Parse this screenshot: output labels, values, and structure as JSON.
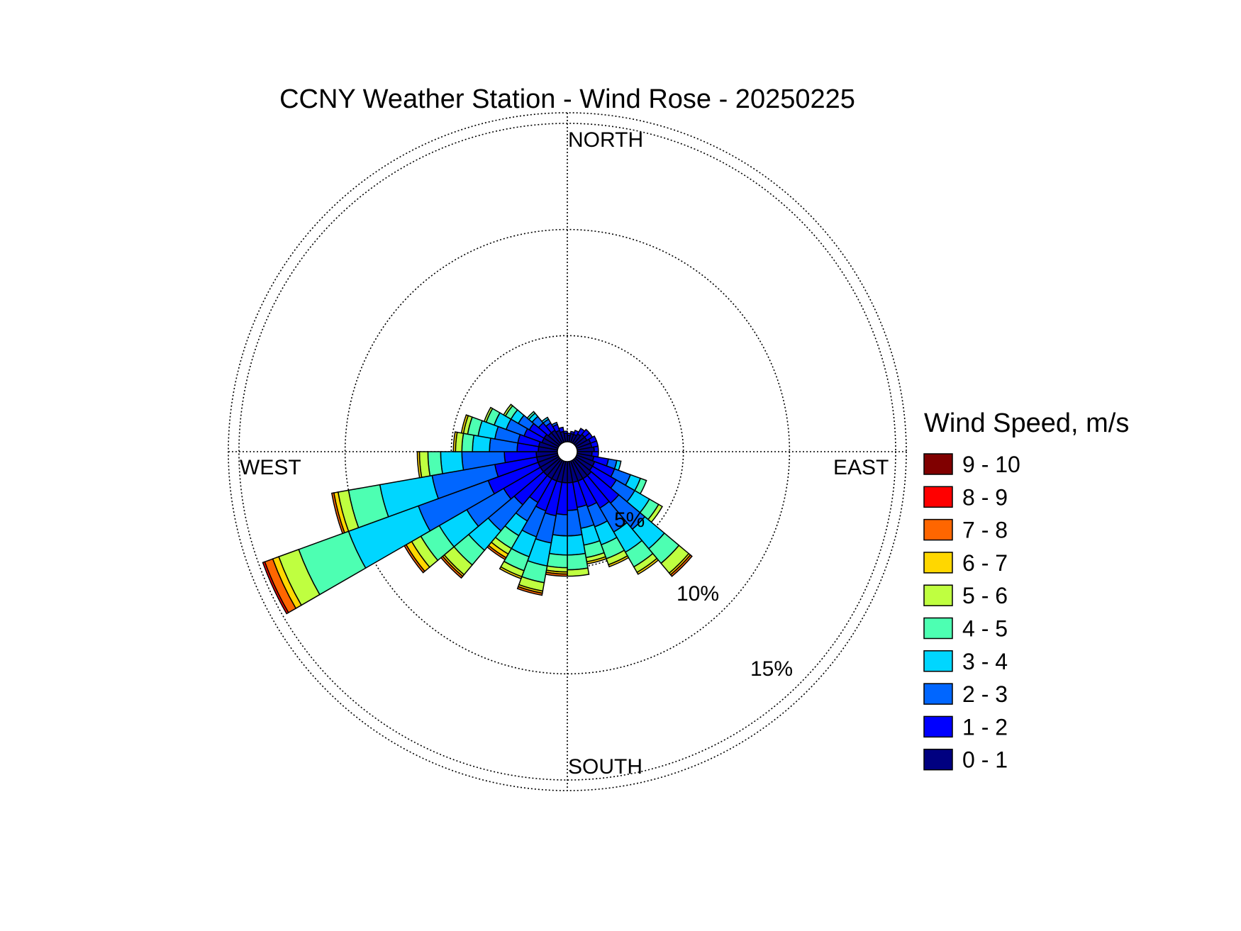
{
  "chart_data": {
    "type": "wind_rose",
    "title": "CCNY Weather Station - Wind Rose - 20250225",
    "compass": {
      "north": "NORTH",
      "south": "SOUTH",
      "east": "EAST",
      "west": "WEST"
    },
    "ring_labels": [
      "5%",
      "10%",
      "15%"
    ],
    "rings_percent": [
      5,
      10,
      15
    ],
    "rmax_percent": 15.5,
    "legend_title": "Wind Speed, m/s",
    "legend_position": "right",
    "speed_bins": [
      {
        "label": "0 - 1",
        "color": "#000080"
      },
      {
        "label": "1 - 2",
        "color": "#0000FF"
      },
      {
        "label": "2 - 3",
        "color": "#0066FF"
      },
      {
        "label": "3 - 4",
        "color": "#00D6FF"
      },
      {
        "label": "4 - 5",
        "color": "#4DFFB2"
      },
      {
        "label": "5 - 6",
        "color": "#BFFF40"
      },
      {
        "label": "6 - 7",
        "color": "#FFD700"
      },
      {
        "label": "7 - 8",
        "color": "#FF6600"
      },
      {
        "label": "8 - 9",
        "color": "#FF0000"
      },
      {
        "label": "9 - 10",
        "color": "#800000"
      }
    ],
    "sector_width_deg": 10,
    "directions_deg": [
      5,
      15,
      25,
      35,
      45,
      55,
      65,
      75,
      85,
      95,
      105,
      115,
      125,
      135,
      145,
      155,
      165,
      175,
      185,
      195,
      205,
      215,
      225,
      235,
      245,
      255,
      265,
      275,
      285,
      295,
      305,
      315,
      325,
      335,
      345,
      355
    ],
    "frequency_percent": [
      [
        0.3,
        0.1,
        0,
        0,
        0,
        0,
        0,
        0,
        0,
        0
      ],
      [
        0.4,
        0.1,
        0,
        0,
        0,
        0,
        0,
        0,
        0,
        0
      ],
      [
        0.4,
        0.2,
        0,
        0,
        0,
        0,
        0,
        0,
        0,
        0
      ],
      [
        0.5,
        0.3,
        0,
        0,
        0,
        0,
        0,
        0,
        0,
        0
      ],
      [
        0.6,
        0.3,
        0,
        0,
        0,
        0,
        0,
        0,
        0,
        0
      ],
      [
        0.6,
        0.3,
        0,
        0,
        0,
        0,
        0,
        0,
        0,
        0
      ],
      [
        0.7,
        0.3,
        0,
        0,
        0,
        0,
        0,
        0,
        0,
        0
      ],
      [
        0.7,
        0.3,
        0,
        0,
        0,
        0,
        0,
        0,
        0,
        0
      ],
      [
        0.8,
        0.2,
        0,
        0,
        0,
        0,
        0,
        0,
        0,
        0
      ],
      [
        0.7,
        0.3,
        0,
        0,
        0,
        0,
        0,
        0,
        0,
        0
      ],
      [
        0.8,
        0.7,
        0.4,
        0.2,
        0,
        0,
        0,
        0,
        0,
        0
      ],
      [
        0.9,
        1.0,
        0.8,
        0.5,
        0.3,
        0,
        0,
        0,
        0,
        0
      ],
      [
        0.9,
        1.3,
        1.0,
        0.8,
        0.5,
        0.2,
        0,
        0,
        0,
        0
      ],
      [
        1.0,
        1.7,
        1.6,
        1.2,
        0.9,
        0.6,
        0.1,
        0.1,
        0,
        0
      ],
      [
        1.0,
        1.6,
        1.3,
        1.1,
        0.8,
        0.3,
        0.1,
        0,
        0,
        0
      ],
      [
        1.0,
        1.3,
        1.0,
        0.9,
        0.7,
        0.3,
        0.1,
        0,
        0,
        0
      ],
      [
        1.0,
        1.2,
        1.0,
        0.8,
        0.6,
        0.2,
        0.1,
        0,
        0,
        0
      ],
      [
        1.0,
        1.3,
        1.2,
        0.9,
        0.7,
        0.3,
        0,
        0,
        0,
        0
      ],
      [
        1.0,
        1.5,
        1.0,
        0.9,
        0.6,
        0.2,
        0.1,
        0.1,
        0,
        0
      ],
      [
        1.0,
        1.6,
        1.3,
        1.1,
        0.8,
        0.4,
        0.1,
        0.1,
        0,
        0
      ],
      [
        1.0,
        1.5,
        1.3,
        1.0,
        0.7,
        0.3,
        0.1,
        0,
        0,
        0
      ],
      [
        1.0,
        1.3,
        1.0,
        0.8,
        0.7,
        0.3,
        0.2,
        0.1,
        0,
        0
      ],
      [
        1.0,
        1.8,
        1.6,
        1.2,
        0.9,
        0.6,
        0.1,
        0.1,
        0,
        0
      ],
      [
        1.0,
        2.0,
        2.0,
        1.5,
        1.0,
        0.5,
        0.3,
        0.1,
        0,
        0
      ],
      [
        1.0,
        2.5,
        3.5,
        3.5,
        2.5,
        1.0,
        0.3,
        0.4,
        0.1,
        0
      ],
      [
        1.0,
        2.0,
        3.0,
        2.5,
        1.5,
        0.5,
        0.2,
        0.1,
        0,
        0
      ],
      [
        1.0,
        1.5,
        2.0,
        1.0,
        0.6,
        0.4,
        0.1,
        0,
        0,
        0
      ],
      [
        0.9,
        1.0,
        1.3,
        0.8,
        0.5,
        0.3,
        0.1,
        0,
        0,
        0
      ],
      [
        0.9,
        1.0,
        1.1,
        0.8,
        0.5,
        0.2,
        0.1,
        0,
        0,
        0
      ],
      [
        0.8,
        0.9,
        0.9,
        0.6,
        0.4,
        0.1,
        0,
        0,
        0,
        0
      ],
      [
        0.8,
        0.8,
        0.6,
        0.4,
        0.3,
        0.1,
        0,
        0,
        0,
        0
      ],
      [
        0.7,
        0.6,
        0.4,
        0.2,
        0.1,
        0,
        0,
        0,
        0,
        0
      ],
      [
        0.7,
        0.4,
        0.2,
        0.1,
        0,
        0,
        0,
        0,
        0,
        0
      ],
      [
        0.6,
        0.3,
        0.1,
        0,
        0,
        0,
        0,
        0,
        0,
        0
      ],
      [
        0.5,
        0.2,
        0,
        0,
        0,
        0,
        0,
        0,
        0,
        0
      ],
      [
        0.4,
        0.1,
        0,
        0,
        0,
        0,
        0,
        0,
        0,
        0
      ]
    ]
  }
}
